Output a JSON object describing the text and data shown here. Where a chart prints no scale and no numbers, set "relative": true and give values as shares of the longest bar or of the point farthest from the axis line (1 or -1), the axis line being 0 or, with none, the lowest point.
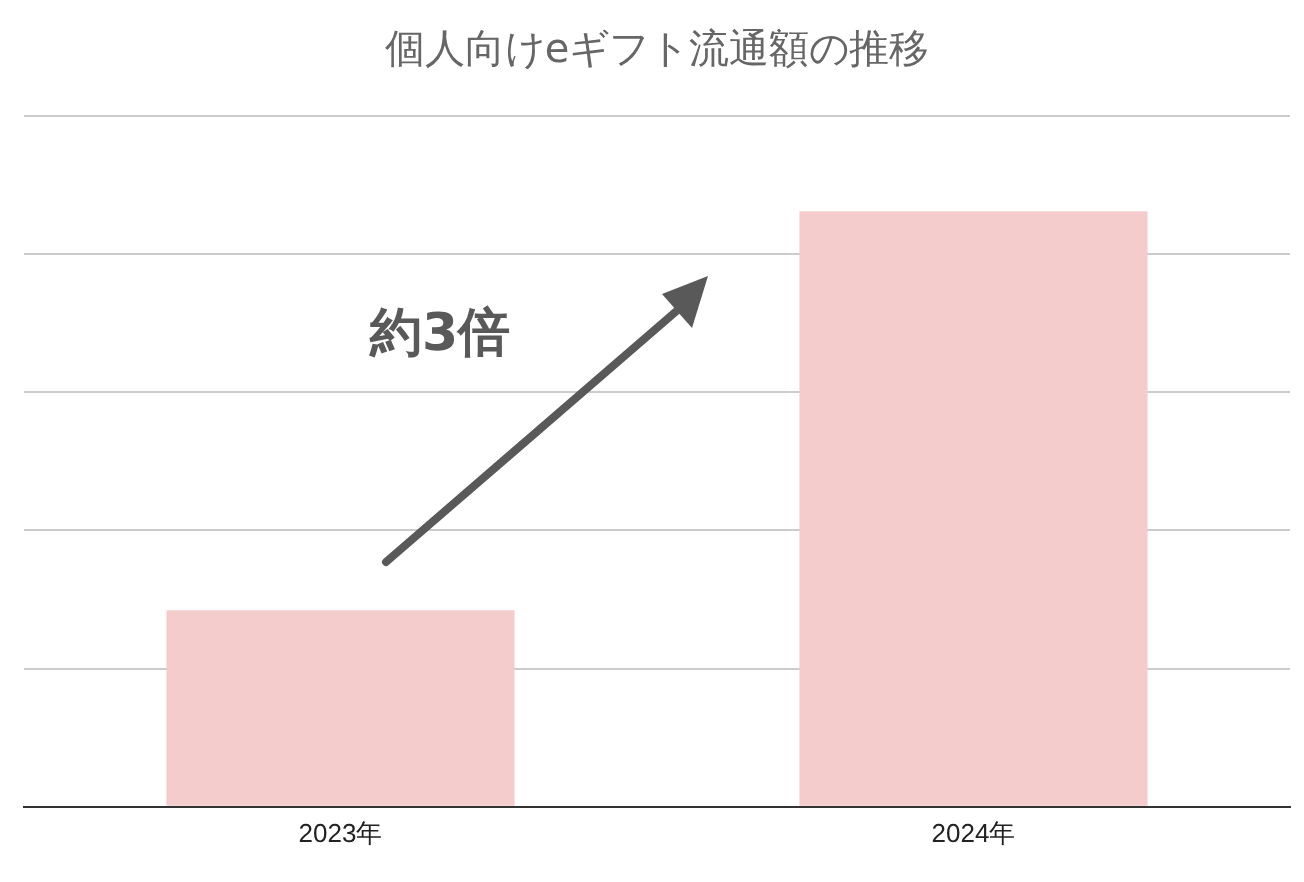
{
  "chart_data": {
    "type": "bar",
    "title": "個人向けeギフト流通額の推移",
    "categories": [
      "2023年",
      "2024年"
    ],
    "values": [
      0.33,
      1
    ],
    "color": "#f4cccc",
    "relative": true,
    "grid": "y",
    "legend": false,
    "annotations": [
      "約3倍"
    ]
  }
}
